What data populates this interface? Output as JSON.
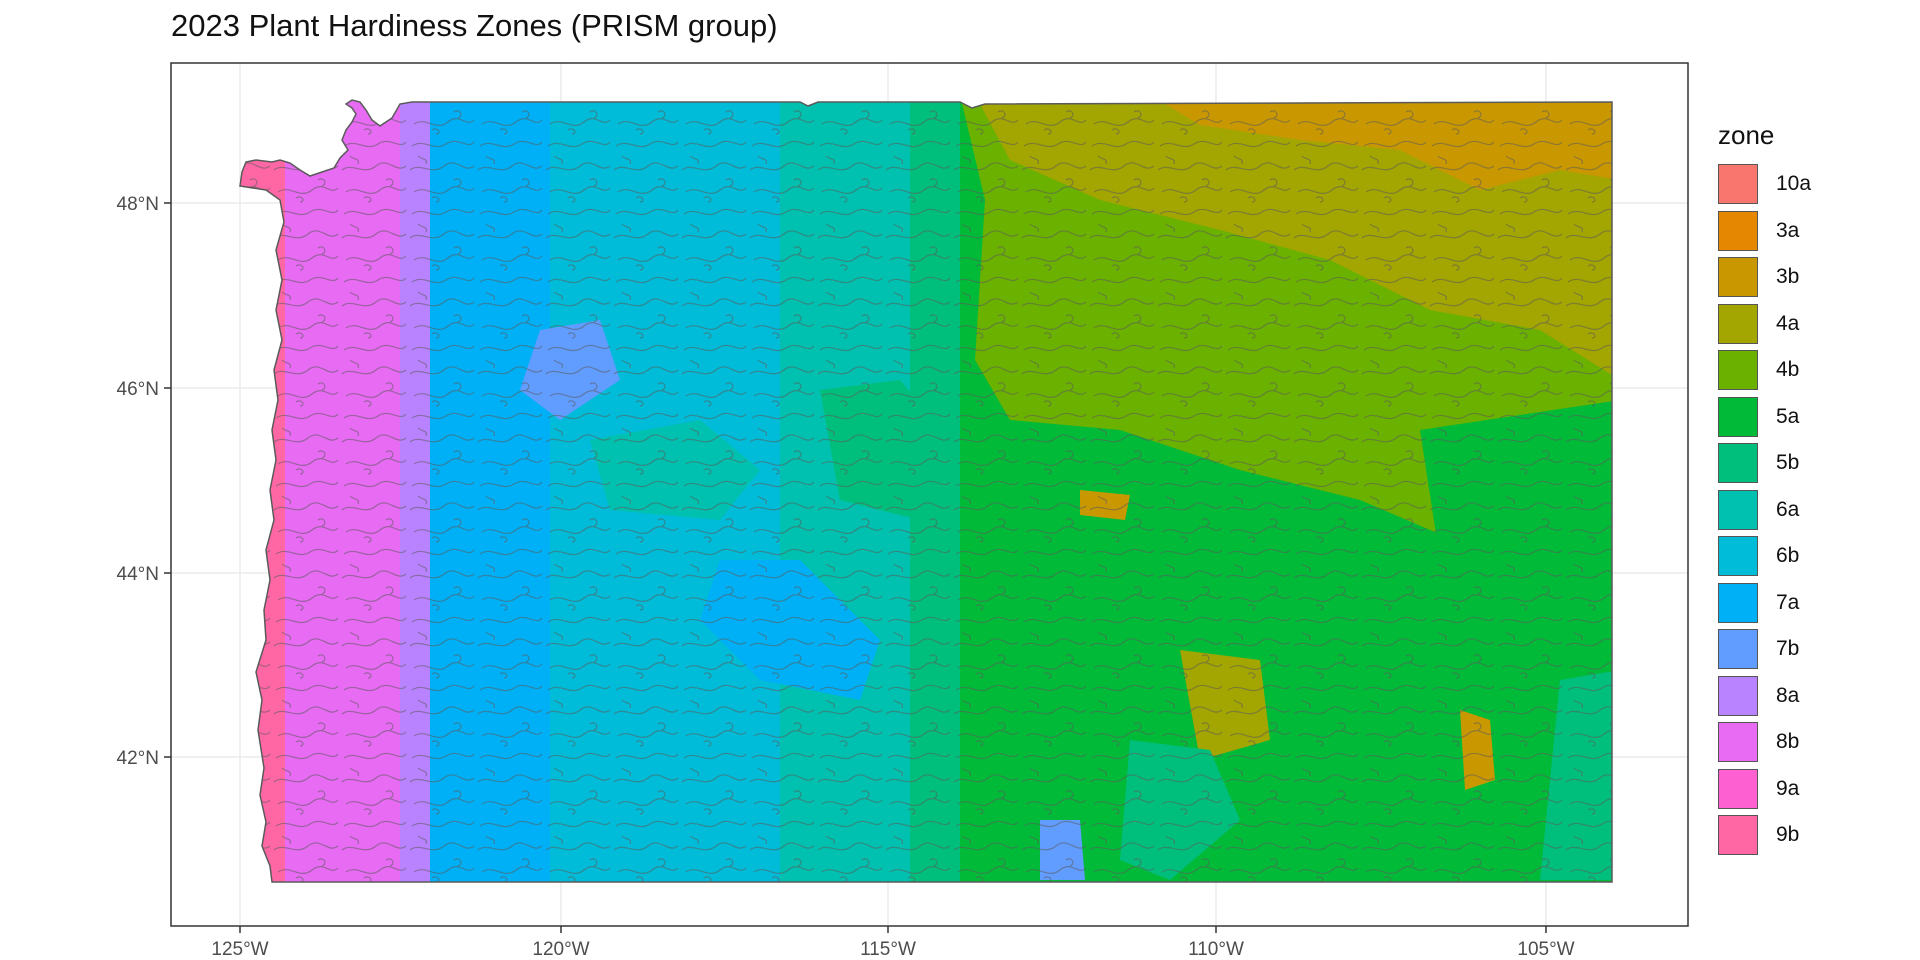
{
  "title": "2023 Plant Hardiness Zones (PRISM group)",
  "map": {
    "x_ticks": [
      "125°W",
      "120°W",
      "115°W",
      "110°W",
      "105°W"
    ],
    "y_ticks": [
      "48°N",
      "46°N",
      "44°N",
      "42°N"
    ],
    "boundary_color": "#5a5a5a",
    "panel_background": "#ffffff",
    "grid_color": "#ebebeb"
  },
  "legend": {
    "title": "zone",
    "items": [
      {
        "label": "10a",
        "color": "#F8766D"
      },
      {
        "label": "3a",
        "color": "#E58700"
      },
      {
        "label": "3b",
        "color": "#C99800"
      },
      {
        "label": "4a",
        "color": "#A3A500"
      },
      {
        "label": "4b",
        "color": "#6BB100"
      },
      {
        "label": "5a",
        "color": "#00BA38"
      },
      {
        "label": "5b",
        "color": "#00BF7D"
      },
      {
        "label": "6a",
        "color": "#00C0AF"
      },
      {
        "label": "6b",
        "color": "#00BCD8"
      },
      {
        "label": "7a",
        "color": "#00B0F6"
      },
      {
        "label": "7b",
        "color": "#619CFF"
      },
      {
        "label": "8a",
        "color": "#B983FF"
      },
      {
        "label": "8b",
        "color": "#E76BF3"
      },
      {
        "label": "9a",
        "color": "#FD61D1"
      },
      {
        "label": "9b",
        "color": "#FF67A4"
      }
    ]
  }
}
